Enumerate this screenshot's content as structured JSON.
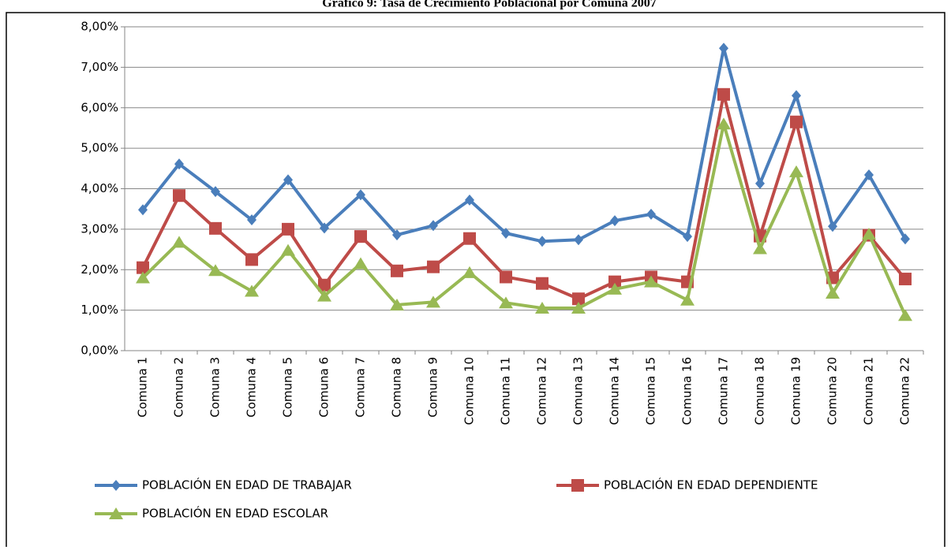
{
  "chart_data": {
    "type": "line",
    "title": "Gráfico 9: Tasa de Crecimiento Poblacional por Comuna 2007",
    "categories": [
      "Comuna 1",
      "Comuna 2",
      "Comuna 3",
      "Comuna 4",
      "Comuna 5",
      "Comuna 6",
      "Comuna 7",
      "Comuna 8",
      "Comuna 9",
      "Comuna 10",
      "Comuna 11",
      "Comuna 12",
      "Comuna 13",
      "Comuna 14",
      "Comuna 15",
      "Comuna 16",
      "Comuna 17",
      "Comuna 18",
      "Comuna 19",
      "Comuna 20",
      "Comuna 21",
      "Comuna 22"
    ],
    "series": [
      {
        "name": "POBLACIÓN EN EDAD DE TRABAJAR",
        "color": "#4a7ebb",
        "marker": "diamond",
        "values": [
          3.48,
          4.61,
          3.93,
          3.23,
          4.22,
          3.03,
          3.85,
          2.86,
          3.09,
          3.72,
          2.9,
          2.7,
          2.74,
          3.21,
          3.37,
          2.82,
          7.47,
          4.13,
          6.3,
          3.07,
          4.34,
          2.76
        ]
      },
      {
        "name": "POBLACIÓN EN EDAD DEPENDIENTE",
        "color": "#be4b48",
        "marker": "square",
        "values": [
          2.05,
          3.83,
          3.02,
          2.25,
          3.0,
          1.62,
          2.82,
          1.97,
          2.07,
          2.77,
          1.82,
          1.66,
          1.28,
          1.7,
          1.82,
          1.7,
          6.33,
          2.83,
          5.65,
          1.8,
          2.85,
          1.77
        ]
      },
      {
        "name": "POBLACIÓN EN EDAD ESCOLAR",
        "color": "#98b954",
        "marker": "triangle",
        "values": [
          1.8,
          2.68,
          1.98,
          1.47,
          2.48,
          1.35,
          2.15,
          1.13,
          1.2,
          1.93,
          1.18,
          1.05,
          1.05,
          1.52,
          1.7,
          1.25,
          5.6,
          2.52,
          4.42,
          1.42,
          2.88,
          0.87
        ]
      }
    ],
    "ylim": [
      0,
      8
    ],
    "yticks": [
      {
        "value": 0,
        "label": "0,00%"
      },
      {
        "value": 1,
        "label": "1,00%"
      },
      {
        "value": 2,
        "label": "2,00%"
      },
      {
        "value": 3,
        "label": "3,00%"
      },
      {
        "value": 4,
        "label": "4,00%"
      },
      {
        "value": 5,
        "label": "5,00%"
      },
      {
        "value": 6,
        "label": "6,00%"
      },
      {
        "value": 7,
        "label": "7,00%"
      },
      {
        "value": 8,
        "label": "8,00%"
      }
    ],
    "grid": true,
    "legend": "bottom"
  }
}
